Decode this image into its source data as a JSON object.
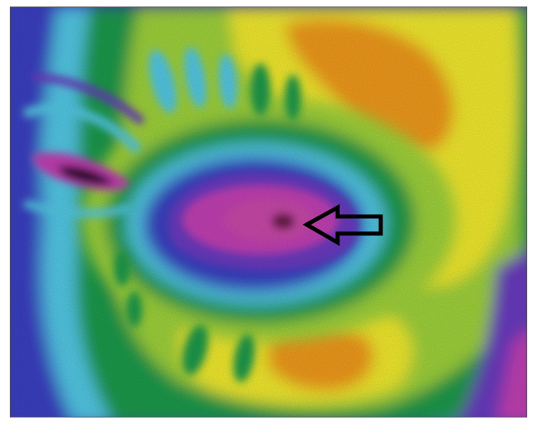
{
  "image": {
    "kind": "thermal-scan",
    "palette": {
      "background": "#ffffff",
      "frame": "#5a5a5a",
      "cold_blue": "#3a3fc2",
      "cyan": "#52c9e6",
      "green": "#1f9a4c",
      "lime": "#9fd23a",
      "yellow": "#f2ea2e",
      "orange": "#f09a1e",
      "magenta": "#c23fb4",
      "purple": "#6a3ac0",
      "arrow": "#000000"
    },
    "arrow_icon": "left-arrow-icon"
  }
}
